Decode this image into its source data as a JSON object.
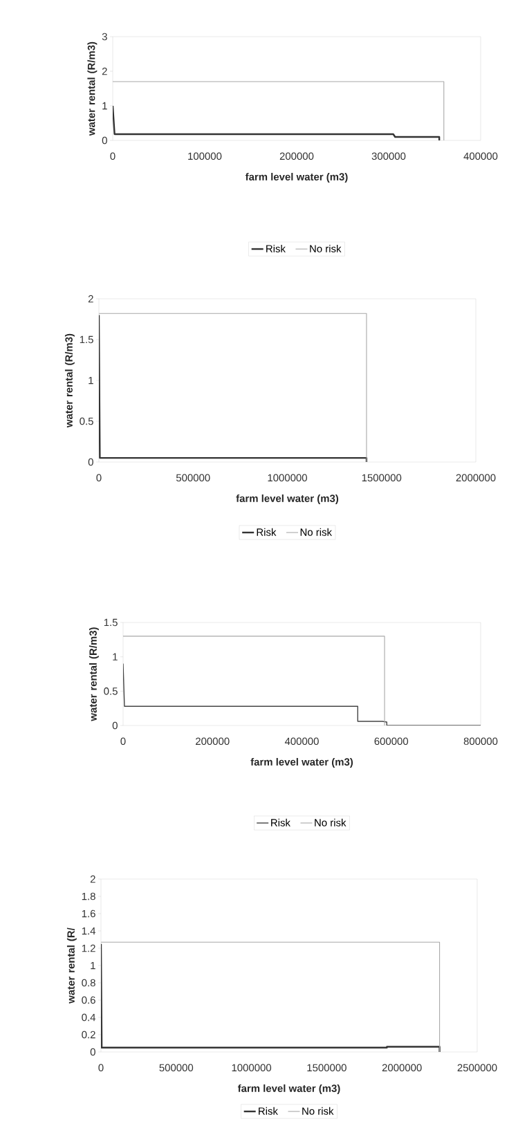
{
  "chart_data": [
    {
      "type": "line",
      "xlabel": "farm level water (m3)",
      "ylabel": "water rental (R/m3)",
      "xlim": [
        0,
        400000
      ],
      "ylim": [
        0,
        3
      ],
      "xticks": [
        0,
        100000,
        200000,
        300000,
        400000
      ],
      "yticks": [
        0,
        1,
        2,
        3
      ],
      "legend": "bottom",
      "grid": false,
      "series": [
        {
          "name": "Risk",
          "color": "#333333",
          "x": [
            0,
            2000,
            305000,
            307000,
            355000,
            355000
          ],
          "values": [
            1,
            0.18,
            0.18,
            0.1,
            0.1,
            0
          ]
        },
        {
          "name": "No risk",
          "color": "#a8a8a8",
          "x": [
            0,
            360000,
            360000
          ],
          "values": [
            1.7,
            1.7,
            0
          ]
        }
      ]
    },
    {
      "type": "line",
      "xlabel": "farm level water (m3)",
      "ylabel": "water rental (R/m3)",
      "xlim": [
        0,
        2000000
      ],
      "ylim": [
        0,
        2
      ],
      "xticks": [
        0,
        500000,
        1000000,
        1500000,
        2000000
      ],
      "yticks": [
        0,
        0.5,
        1,
        1.5,
        2
      ],
      "legend": "bottom",
      "grid": false,
      "series": [
        {
          "name": "Risk",
          "color": "#333333",
          "x": [
            0,
            5000,
            1420000,
            1420000
          ],
          "values": [
            1.8,
            0.05,
            0.05,
            0
          ]
        },
        {
          "name": "No risk",
          "color": "#a8a8a8",
          "x": [
            0,
            1420000,
            1420000
          ],
          "values": [
            1.82,
            1.82,
            0
          ]
        }
      ]
    },
    {
      "type": "line",
      "xlabel": "farm level water (m3)",
      "ylabel": "water rental (R/m3)",
      "xlim": [
        0,
        800000
      ],
      "ylim": [
        0,
        1.5
      ],
      "xticks": [
        0,
        200000,
        400000,
        600000,
        800000
      ],
      "yticks": [
        0,
        0.5,
        1,
        1.5
      ],
      "legend": "bottom",
      "grid": false,
      "series": [
        {
          "name": "Risk",
          "color": "#444444",
          "x": [
            0,
            3000,
            525000,
            525000,
            580000,
            590000,
            590000,
            800000
          ],
          "values": [
            0.9,
            0.28,
            0.28,
            0.06,
            0.06,
            0.05,
            0,
            0
          ]
        },
        {
          "name": "No risk",
          "color": "#a8a8a8",
          "x": [
            0,
            585000,
            585000
          ],
          "values": [
            1.3,
            1.3,
            0
          ]
        }
      ]
    },
    {
      "type": "line",
      "xlabel": "farm level water (m3)",
      "ylabel": "water rental (R/",
      "xlim": [
        0,
        2500000
      ],
      "ylim": [
        0,
        2
      ],
      "xticks": [
        0,
        500000,
        1000000,
        1500000,
        2000000,
        2500000
      ],
      "yticks": [
        0,
        0.2,
        0.4,
        0.6,
        0.8,
        1,
        1.2,
        1.4,
        1.6,
        1.8,
        2
      ],
      "legend": "bottom",
      "grid": false,
      "series": [
        {
          "name": "Risk",
          "color": "#333333",
          "x": [
            0,
            5000,
            1900000,
            1900000,
            2250000,
            2250000
          ],
          "values": [
            1.25,
            0.05,
            0.05,
            0.06,
            0.06,
            0
          ]
        },
        {
          "name": "No risk",
          "color": "#a8a8a8",
          "x": [
            0,
            2250000,
            2250000
          ],
          "values": [
            1.27,
            1.27,
            0
          ]
        }
      ]
    }
  ]
}
